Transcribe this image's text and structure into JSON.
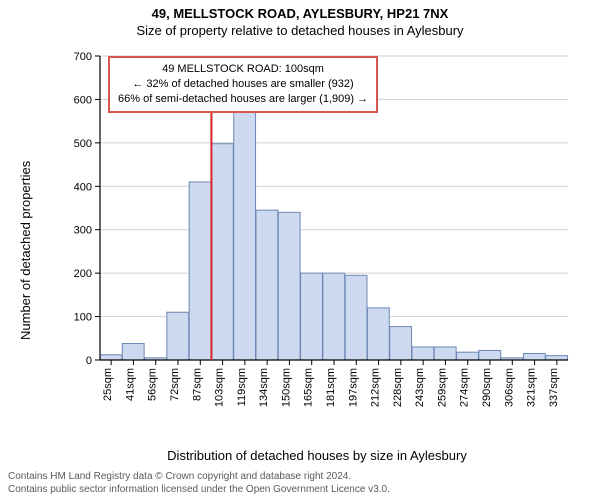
{
  "title": "49, MELLSTOCK ROAD, AYLESBURY, HP21 7NX",
  "subtitle": "Size of property relative to detached houses in Aylesbury",
  "y_axis_label": "Number of detached properties",
  "x_axis_label": "Distribution of detached houses by size in Aylesbury",
  "footer_line1": "Contains HM Land Registry data © Crown copyright and database right 2024.",
  "footer_line2": "Contains public sector information licensed under the Open Government Licence v3.0.",
  "annotation": {
    "line1": "49 MELLSTOCK ROAD: 100sqm",
    "line2": "← 32% of detached houses are smaller (932)",
    "line3": "66% of semi-detached houses are larger (1,909) →",
    "border_color": "#d9534f"
  },
  "chart": {
    "type": "bar",
    "background_color": "#ffffff",
    "bar_fill": "#cdd9ef",
    "bar_stroke": "#6d86b5",
    "grid_color": "#d0d0d0",
    "axis_color": "#000000",
    "marker_line_color": "#d62728",
    "marker_x_index": 5,
    "bar_width": 0.98,
    "ylim": [
      0,
      700
    ],
    "ytick_step": 100,
    "yticks": [
      0,
      100,
      200,
      300,
      400,
      500,
      600,
      700
    ],
    "x_labels": [
      "25sqm",
      "41sqm",
      "56sqm",
      "72sqm",
      "87sqm",
      "103sqm",
      "119sqm",
      "134sqm",
      "150sqm",
      "165sqm",
      "181sqm",
      "197sqm",
      "212sqm",
      "228sqm",
      "243sqm",
      "259sqm",
      "274sqm",
      "290sqm",
      "306sqm",
      "321sqm",
      "337sqm"
    ],
    "values": [
      12,
      38,
      5,
      110,
      410,
      498,
      590,
      345,
      340,
      200,
      200,
      195,
      120,
      77,
      30,
      30,
      18,
      22,
      5,
      15,
      10
    ]
  }
}
